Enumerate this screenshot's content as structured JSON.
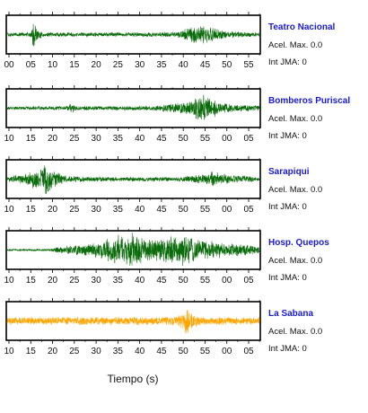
{
  "chart_data": {
    "type": "line",
    "xlabel": "Tiempo (s)",
    "grid": false,
    "panels": [
      {
        "station": "Teatro Nacional",
        "accel_label": "Acel. Max. 0.0",
        "jma_label": "Int JMA: 0",
        "color": "#0a6b0a",
        "x_ticks": [
          "00",
          "05",
          "10",
          "15",
          "20",
          "25",
          "30",
          "35",
          "40",
          "45",
          "50",
          "55"
        ],
        "envelope": [
          {
            "t": 0,
            "a": 0.12
          },
          {
            "t": 5.5,
            "a": 0.14
          },
          {
            "t": 6.3,
            "a": 0.95
          },
          {
            "t": 7.2,
            "a": 0.3
          },
          {
            "t": 9,
            "a": 0.14
          },
          {
            "t": 25,
            "a": 0.13
          },
          {
            "t": 40,
            "a": 0.16
          },
          {
            "t": 44,
            "a": 0.5
          },
          {
            "t": 47,
            "a": 0.55
          },
          {
            "t": 50,
            "a": 0.35
          },
          {
            "t": 53,
            "a": 0.2
          },
          {
            "t": 60,
            "a": 0.12
          }
        ]
      },
      {
        "station": "Bomberos Puriscal",
        "accel_label": "Acel. Max. 0.0",
        "jma_label": "Int JMA: 0",
        "color": "#0a6b0a",
        "x_ticks": [
          "10",
          "15",
          "20",
          "25",
          "30",
          "35",
          "40",
          "45",
          "50",
          "55",
          "00",
          "05"
        ],
        "envelope": [
          {
            "t": 0,
            "a": 0.1
          },
          {
            "t": 14,
            "a": 0.12
          },
          {
            "t": 15.5,
            "a": 0.3
          },
          {
            "t": 17,
            "a": 0.12
          },
          {
            "t": 35,
            "a": 0.15
          },
          {
            "t": 40,
            "a": 0.3
          },
          {
            "t": 44,
            "a": 0.45
          },
          {
            "t": 45.5,
            "a": 0.95
          },
          {
            "t": 47,
            "a": 0.8
          },
          {
            "t": 50,
            "a": 0.45
          },
          {
            "t": 53,
            "a": 0.25
          },
          {
            "t": 60,
            "a": 0.15
          }
        ]
      },
      {
        "station": "Sarapiqui",
        "accel_label": "Acel. Max. 0.0",
        "jma_label": "Int JMA: 0",
        "color": "#0a6b0a",
        "x_ticks": [
          "10",
          "15",
          "20",
          "25",
          "30",
          "35",
          "40",
          "45",
          "50",
          "55",
          "00",
          "05"
        ],
        "envelope": [
          {
            "t": 0,
            "a": 0.18
          },
          {
            "t": 4,
            "a": 0.3
          },
          {
            "t": 7,
            "a": 0.65
          },
          {
            "t": 9.5,
            "a": 1.0
          },
          {
            "t": 11,
            "a": 0.55
          },
          {
            "t": 14,
            "a": 0.2
          },
          {
            "t": 25,
            "a": 0.13
          },
          {
            "t": 40,
            "a": 0.13
          },
          {
            "t": 47,
            "a": 0.28
          },
          {
            "t": 49,
            "a": 0.5
          },
          {
            "t": 51,
            "a": 0.3
          },
          {
            "t": 60,
            "a": 0.15
          }
        ]
      },
      {
        "station": "Hosp. Quepos",
        "accel_label": "Acel. Max. 0.0",
        "jma_label": "Int JMA: 0",
        "color": "#0a6b0a",
        "x_ticks": [
          "10",
          "15",
          "20",
          "25",
          "30",
          "35",
          "40",
          "45",
          "50",
          "55",
          "00",
          "05"
        ],
        "envelope": [
          {
            "t": 0,
            "a": 0.05
          },
          {
            "t": 10,
            "a": 0.06
          },
          {
            "t": 12,
            "a": 0.18
          },
          {
            "t": 20,
            "a": 0.4
          },
          {
            "t": 26,
            "a": 0.85
          },
          {
            "t": 30,
            "a": 1.0
          },
          {
            "t": 34,
            "a": 0.7
          },
          {
            "t": 38,
            "a": 0.8
          },
          {
            "t": 42,
            "a": 0.9
          },
          {
            "t": 46,
            "a": 0.6
          },
          {
            "t": 50,
            "a": 0.5
          },
          {
            "t": 56,
            "a": 0.35
          },
          {
            "t": 60,
            "a": 0.25
          }
        ]
      },
      {
        "station": "La Sabana",
        "accel_label": "Acel. Max. 0.0",
        "jma_label": "Int JMA: 0",
        "color": "#ffa500",
        "x_ticks": [
          "10",
          "15",
          "20",
          "25",
          "30",
          "35",
          "40",
          "45",
          "50",
          "55",
          "00",
          "05"
        ],
        "envelope": [
          {
            "t": 0,
            "a": 0.22
          },
          {
            "t": 20,
            "a": 0.24
          },
          {
            "t": 40,
            "a": 0.25
          },
          {
            "t": 42,
            "a": 0.5
          },
          {
            "t": 42.8,
            "a": 1.0
          },
          {
            "t": 43.6,
            "a": 0.5
          },
          {
            "t": 46,
            "a": 0.25
          },
          {
            "t": 60,
            "a": 0.22
          }
        ]
      }
    ]
  }
}
